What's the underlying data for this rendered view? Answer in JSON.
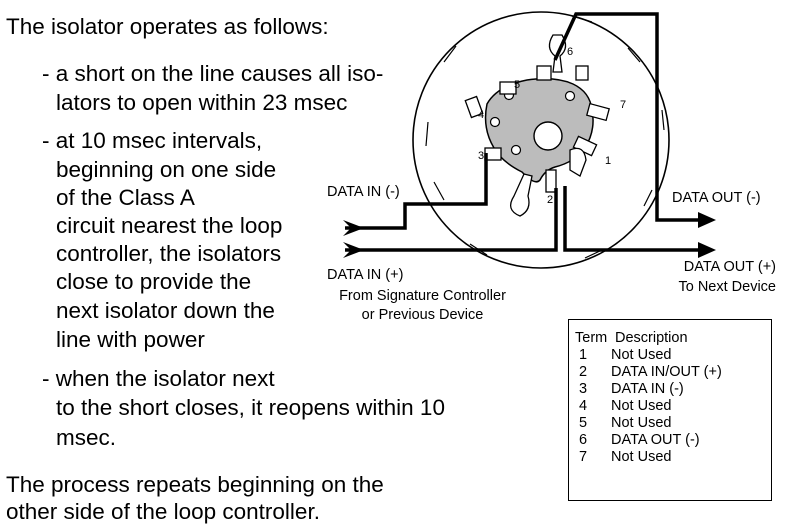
{
  "text": {
    "intro": "The isolator operates as follows:",
    "bullet1": [
      "- a short on the line causes all iso-",
      "lators to open within 23 msec"
    ],
    "bullet2": [
      "- at 10 msec intervals,",
      "beginning on one side",
      "of the Class A",
      "circuit nearest the loop",
      "controller, the isolators",
      "close to provide the",
      "next isolator down the",
      "line with power"
    ],
    "bullet3": [
      "- when the isolator next",
      "to the short closes, it reopens within 10",
      "msec."
    ],
    "closing": [
      "The process repeats beginning on the",
      "other side of the loop controller."
    ]
  },
  "diagram": {
    "data_in_neg": "DATA IN (-)",
    "data_in_pos": "DATA IN (+)",
    "from_line1": "From Signature Controller",
    "from_line2": "or Previous Device",
    "data_out_neg": "DATA OUT (-)",
    "data_out_pos": "DATA OUT (+)",
    "to_next": "To Next Device",
    "terminal_numbers": [
      "1",
      "2",
      "3",
      "4",
      "5",
      "6",
      "7"
    ]
  },
  "term_table": {
    "header_term": "Term",
    "header_desc": "Description",
    "rows": [
      {
        "term": "1",
        "desc": "Not Used"
      },
      {
        "term": "2",
        "desc": "DATA IN/OUT (+)"
      },
      {
        "term": "3",
        "desc": "DATA IN (-)"
      },
      {
        "term": "4",
        "desc": "Not Used"
      },
      {
        "term": "5",
        "desc": "Not Used"
      },
      {
        "term": "6",
        "desc": "DATA OUT (-)"
      },
      {
        "term": "7",
        "desc": "Not Used"
      }
    ]
  }
}
